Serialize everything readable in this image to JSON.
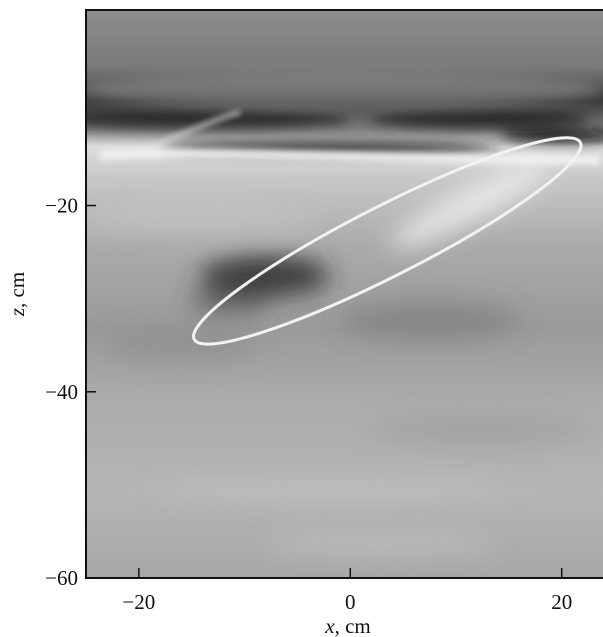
{
  "chart_data": {
    "type": "heatmap",
    "title": "",
    "xlabel_var": "x",
    "xlabel_unit": ", cm",
    "ylabel_var": "z",
    "ylabel_unit": ", cm",
    "xlim": [
      -25,
      24
    ],
    "ylim": [
      -60,
      1
    ],
    "x_ticks": [
      -20,
      0,
      20
    ],
    "y_ticks": [
      -20,
      -40,
      -60
    ],
    "x_tick_labels": [
      "−20",
      "0",
      "20"
    ],
    "y_tick_labels": [
      "−20",
      "−40",
      "−60"
    ],
    "colormap": "grayscale",
    "features": [
      {
        "name": "dark upper layer",
        "z_range": [
          -17,
          -9
        ],
        "shade": "dark"
      },
      {
        "name": "bright band",
        "z_range": [
          -18,
          -14
        ],
        "shade": "light"
      },
      {
        "name": "dark anomaly",
        "x": -6,
        "z": -29,
        "shade": "dark"
      },
      {
        "name": "bright streak",
        "x_range": [
          8,
          20
        ],
        "z_range": [
          -24,
          -16
        ],
        "shade": "light"
      }
    ],
    "highlight_ellipse": {
      "center_x": 3.5,
      "center_z": -23.8,
      "semi_major_cm": 20.5,
      "semi_minor_cm": 3.3,
      "angle_deg": 27,
      "color": "#f2f2f2"
    }
  }
}
